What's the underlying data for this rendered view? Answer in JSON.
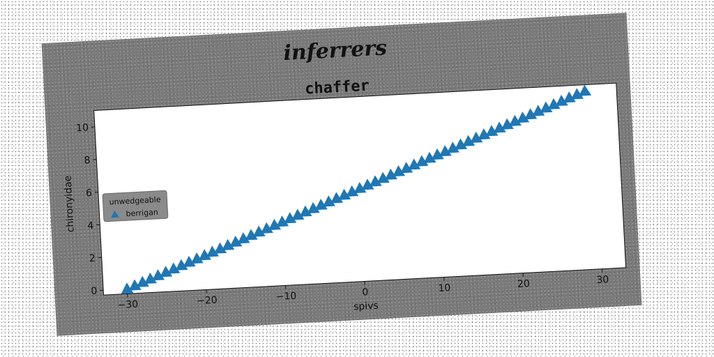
{
  "figure": {
    "suptitle": "inferrers"
  },
  "chart_data": {
    "type": "scatter",
    "title": "chaffer",
    "xlabel": "spivs",
    "ylabel": "chironyidae",
    "xlim": [
      -33,
      33
    ],
    "ylim": [
      -0.3,
      11.0
    ],
    "xticks": [
      -30,
      -20,
      -10,
      0,
      10,
      20,
      30
    ],
    "yticks": [
      0,
      2,
      4,
      6,
      8,
      10
    ],
    "x_tick_labels": [
      "−30",
      "−20",
      "−10",
      "0",
      "10",
      "20",
      "30"
    ],
    "y_tick_labels": [
      "0",
      "2",
      "4",
      "6",
      "8",
      "10"
    ],
    "grid": false,
    "legend": {
      "title": "unwedgeable",
      "placement": "center-left"
    },
    "series": [
      {
        "name": "berrigan",
        "marker": "triangle",
        "color": "#1f77b4",
        "x": [
          -30,
          -29,
          -28,
          -27,
          -26,
          -25,
          -24,
          -23,
          -22,
          -21,
          -20,
          -19,
          -18,
          -17,
          -16,
          -15,
          -14,
          -13,
          -12,
          -11,
          -10,
          -9,
          -8,
          -7,
          -6,
          -5,
          -4,
          -3,
          -2,
          -1,
          0,
          1,
          2,
          3,
          4,
          5,
          6,
          7,
          8,
          9,
          10,
          11,
          12,
          13,
          14,
          15,
          16,
          17,
          18,
          19,
          20,
          21,
          22,
          23,
          24,
          25,
          26,
          27,
          28,
          29
        ],
        "y": [
          0.0,
          0.18,
          0.36,
          0.54,
          0.72,
          0.9,
          1.08,
          1.26,
          1.44,
          1.62,
          1.8,
          1.98,
          2.16,
          2.34,
          2.52,
          2.7,
          2.88,
          3.06,
          3.24,
          3.42,
          3.6,
          3.78,
          3.96,
          4.14,
          4.32,
          4.5,
          4.68,
          4.86,
          5.04,
          5.22,
          5.4,
          5.58,
          5.76,
          5.94,
          6.12,
          6.3,
          6.48,
          6.66,
          6.84,
          7.02,
          7.2,
          7.38,
          7.56,
          7.74,
          7.92,
          8.1,
          8.28,
          8.46,
          8.64,
          8.82,
          9.0,
          9.18,
          9.36,
          9.54,
          9.72,
          9.9,
          10.08,
          10.26,
          10.44,
          10.62
        ]
      }
    ]
  }
}
